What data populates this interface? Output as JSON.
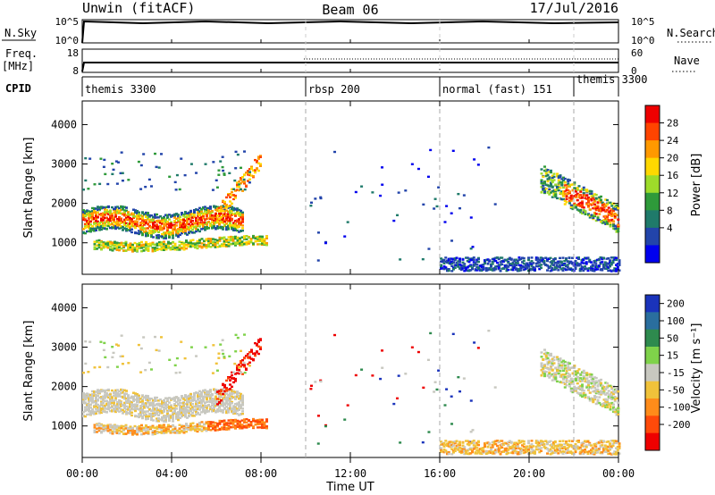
{
  "header": {
    "station": "Unwin (fitACF)",
    "beam": "Beam 06",
    "date": "17/Jul/2016"
  },
  "top_panels": {
    "nsky_label": "N.Sky",
    "nsky_ticks": [
      "10^5",
      "10^0"
    ],
    "nsearch_label": "N.Search",
    "nsearch_ticks": [
      "10^5",
      "10^0"
    ],
    "freq_label": "Freq.",
    "freq_unit": "[MHz]",
    "freq_ticks": [
      "18",
      "8"
    ],
    "nave_label": "Nave",
    "nave_ticks": [
      "60",
      "0"
    ],
    "cpid_label": "CPID"
  },
  "cpid_segments": [
    {
      "label": "themis 3300",
      "start_h": 0,
      "end_h": 10
    },
    {
      "label": "rbsp 200",
      "start_h": 10,
      "end_h": 16
    },
    {
      "label": "normal (fast) 151",
      "start_h": 16,
      "end_h": 22
    },
    {
      "label": "themis 3300",
      "start_h": 22,
      "end_h": 24
    }
  ],
  "power_colorbar": {
    "label": "Power [dB]",
    "ticks": [
      "28",
      "24",
      "20",
      "16",
      "12",
      "8",
      "4"
    ],
    "colors": [
      "#ee0000",
      "#ff4400",
      "#ff9900",
      "#ffd800",
      "#9edc2a",
      "#2e9a3a",
      "#1f7a6a",
      "#2244aa",
      "#0000ee"
    ]
  },
  "velocity_colorbar": {
    "label": "Velocity [m s⁻¹]",
    "ticks": [
      "200",
      "100",
      "50",
      "15",
      "-15",
      "-50",
      "-100",
      "-200"
    ],
    "colors": [
      "#1a33bb",
      "#2a6e9e",
      "#2e8a4e",
      "#7fd24a",
      "#c8c8c0",
      "#f0c23a",
      "#ff8c1a",
      "#ff4a0a",
      "#ee0000"
    ]
  },
  "chart_data": {
    "type": "heatmap",
    "xlabel": "Time UT",
    "ylabel": "Slant Range [km]",
    "x_ticks": [
      "00:00",
      "04:00",
      "08:00",
      "12:00",
      "16:00",
      "20:00",
      "00:00"
    ],
    "x_range_hours": [
      0,
      24
    ],
    "y_ticks": [
      1000,
      2000,
      3000,
      4000
    ],
    "y_range_km": [
      200,
      4600
    ],
    "panels": [
      "Power [dB]",
      "Velocity [m s⁻¹]"
    ],
    "mode_change_lines_hours": [
      10,
      16,
      22
    ],
    "scatter_regions": [
      {
        "name": "main band",
        "start_h": 0.0,
        "end_h": 7.2,
        "range_km": [
          1200,
          1800
        ],
        "power": "strong",
        "velocity": "near zero"
      },
      {
        "name": "lower band",
        "start_h": 0.5,
        "end_h": 8.2,
        "range_km": [
          800,
          1100
        ],
        "power": "moderate",
        "velocity": "-50 to -100"
      },
      {
        "name": "evening band",
        "start_h": 20.5,
        "end_h": 24.0,
        "range_km": [
          1300,
          2600
        ],
        "power": "strong",
        "velocity": "near zero"
      },
      {
        "name": "near-range echoes",
        "start_h": 16.0,
        "end_h": 24.0,
        "range_km": [
          250,
          600
        ],
        "power": "weak",
        "velocity": "-15 to -50"
      }
    ]
  }
}
